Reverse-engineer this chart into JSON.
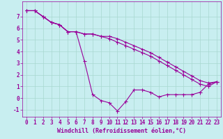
{
  "title": "Windchill (Refroidissement éolien,°C)",
  "bg_color": "#c8eef0",
  "line_color": "#990099",
  "grid_color": "#a8d8d0",
  "line1": [
    7.5,
    7.5,
    7.0,
    6.5,
    6.3,
    5.7,
    5.7,
    3.2,
    0.3,
    -0.2,
    -0.4,
    -1.1,
    -0.3,
    0.7,
    0.7,
    0.5,
    0.1,
    0.3,
    0.3,
    0.3,
    0.3,
    0.5,
    1.2,
    1.4
  ],
  "line2": [
    7.5,
    7.5,
    7.0,
    6.5,
    6.3,
    5.7,
    5.7,
    5.5,
    5.5,
    5.3,
    5.3,
    5.1,
    4.8,
    4.5,
    4.2,
    3.9,
    3.5,
    3.1,
    2.7,
    2.3,
    1.9,
    1.5,
    1.3,
    1.4
  ],
  "line3": [
    7.5,
    7.5,
    7.0,
    6.5,
    6.3,
    5.7,
    5.7,
    5.5,
    5.5,
    5.3,
    5.1,
    4.8,
    4.5,
    4.2,
    3.9,
    3.6,
    3.2,
    2.8,
    2.4,
    2.0,
    1.6,
    1.2,
    1.0,
    1.4
  ],
  "xlim": [
    -0.5,
    23.5
  ],
  "ylim": [
    -1.6,
    8.3
  ],
  "yticks": [
    -1,
    0,
    1,
    2,
    3,
    4,
    5,
    6,
    7
  ],
  "xticks": [
    0,
    1,
    2,
    3,
    4,
    5,
    6,
    7,
    8,
    9,
    10,
    11,
    12,
    13,
    14,
    15,
    16,
    17,
    18,
    19,
    20,
    21,
    22,
    23
  ],
  "tick_fontsize": 5.5,
  "xlabel_fontsize": 6.0,
  "marker_size": 2.0,
  "linewidth": 0.8
}
